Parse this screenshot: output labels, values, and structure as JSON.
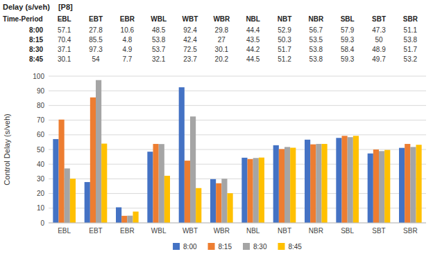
{
  "chart_data": {
    "type": "bar",
    "title": "Delay (s/veh)",
    "subtitle": "[P8]",
    "annotations": [
      "Time-Period"
    ],
    "categories": [
      "EBL",
      "EBT",
      "EBR",
      "WBL",
      "WBT",
      "WBR",
      "NBL",
      "NBT",
      "NBR",
      "SBL",
      "SBT",
      "SBR"
    ],
    "series": [
      {
        "name": "8:00",
        "color": "#4472C4",
        "values": [
          57.1,
          27.8,
          10.6,
          48.5,
          92.4,
          29.8,
          44.4,
          52.9,
          56.7,
          57.9,
          47.3,
          51.1
        ]
      },
      {
        "name": "8:15",
        "color": "#ED7D31",
        "values": [
          70.4,
          85.5,
          4.8,
          53.8,
          42.4,
          27,
          43.5,
          50.3,
          53.5,
          59.3,
          50,
          53.8
        ]
      },
      {
        "name": "8:30",
        "color": "#A5A5A5",
        "values": [
          37.1,
          97.3,
          4.9,
          53.7,
          72.5,
          30.1,
          44.2,
          51.7,
          53.8,
          58.4,
          48.9,
          51.7
        ]
      },
      {
        "name": "8:45",
        "color": "#FFC000",
        "values": [
          30.1,
          54,
          7.7,
          32.1,
          23.7,
          20.2,
          44.5,
          51.2,
          53.8,
          59.3,
          49.7,
          53.2
        ]
      }
    ],
    "y_label": "Control Delay (s/veh)",
    "ylim": [
      0,
      100
    ],
    "yticks": [
      0,
      10,
      20,
      30,
      40,
      50,
      60,
      70,
      80,
      90,
      100
    ],
    "grid": true,
    "legend": "bottom"
  }
}
